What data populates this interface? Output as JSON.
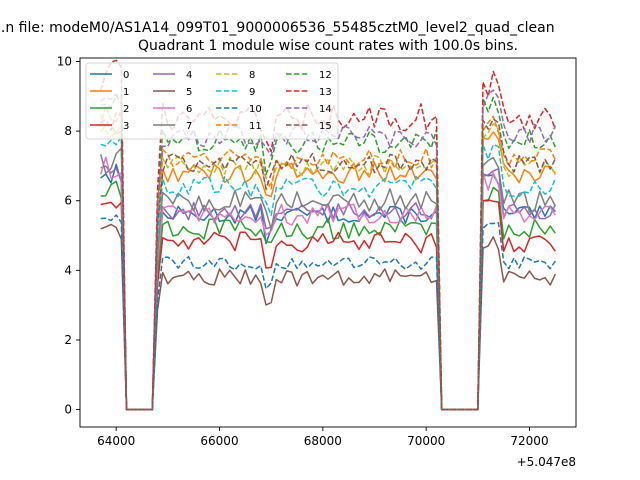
{
  "figure": {
    "suptitle": "...n file: modeM0/AS1A14_099T01_9000006536_55485cztM0_level2_quad_clean"
  },
  "chart_data": {
    "type": "line",
    "title": "Quadrant 1 module wise count rates with 100.0s bins.",
    "xlabel": "",
    "ylabel": "",
    "x_offset_label": "+5.047e8",
    "xlim": [
      63300,
      72900
    ],
    "ylim": [
      -0.5,
      10.1
    ],
    "x_ticks": [
      64000,
      66000,
      68000,
      70000,
      72000
    ],
    "y_ticks": [
      0,
      2,
      4,
      6,
      8,
      10
    ],
    "grid": false,
    "legend_position": "top-left",
    "legend_columns": 4,
    "segments": [
      {
        "start": 63700,
        "end": 64100
      },
      {
        "start": 64800,
        "end": 70200
      },
      {
        "start": 71100,
        "end": 72500
      }
    ],
    "gap_points": [
      64200,
      64300,
      64400,
      64500,
      64600,
      64700,
      70300,
      70400,
      70500,
      70600,
      70700,
      70800,
      70900,
      71000
    ],
    "series": [
      {
        "name": "0",
        "style": "solid",
        "color": "#1f77b4",
        "level": 5.6,
        "amp": 0.25
      },
      {
        "name": "1",
        "style": "solid",
        "color": "#ff7f0e",
        "level": 6.8,
        "amp": 0.3
      },
      {
        "name": "2",
        "style": "solid",
        "color": "#2ca02c",
        "level": 5.2,
        "amp": 0.3
      },
      {
        "name": "3",
        "style": "solid",
        "color": "#d62728",
        "level": 4.8,
        "amp": 0.3
      },
      {
        "name": "4",
        "style": "solid",
        "color": "#9467bd",
        "level": 5.7,
        "amp": 0.25
      },
      {
        "name": "5",
        "style": "solid",
        "color": "#8c564b",
        "level": 3.8,
        "amp": 0.25
      },
      {
        "name": "6",
        "style": "solid",
        "color": "#e377c2",
        "level": 5.6,
        "amp": 0.3
      },
      {
        "name": "7",
        "style": "solid",
        "color": "#7f7f7f",
        "level": 6.0,
        "amp": 0.35
      },
      {
        "name": "8",
        "style": "dashed",
        "color": "#bcbd22",
        "level": 7.0,
        "amp": 0.3
      },
      {
        "name": "9",
        "style": "dashed",
        "color": "#17becf",
        "level": 6.4,
        "amp": 0.3
      },
      {
        "name": "10",
        "style": "dashed",
        "color": "#1f77b4",
        "level": 4.2,
        "amp": 0.2
      },
      {
        "name": "11",
        "style": "dashed",
        "color": "#ff7f0e",
        "level": 7.2,
        "amp": 0.3
      },
      {
        "name": "12",
        "style": "dashed",
        "color": "#2ca02c",
        "level": 7.7,
        "amp": 0.35
      },
      {
        "name": "13",
        "style": "dashed",
        "color": "#d62728",
        "level": 8.4,
        "amp": 0.4
      },
      {
        "name": "14",
        "style": "dashed",
        "color": "#9467bd",
        "level": 7.9,
        "amp": 0.35
      },
      {
        "name": "15",
        "style": "dashed",
        "color": "#8c564b",
        "level": 7.1,
        "amp": 0.3
      }
    ]
  }
}
